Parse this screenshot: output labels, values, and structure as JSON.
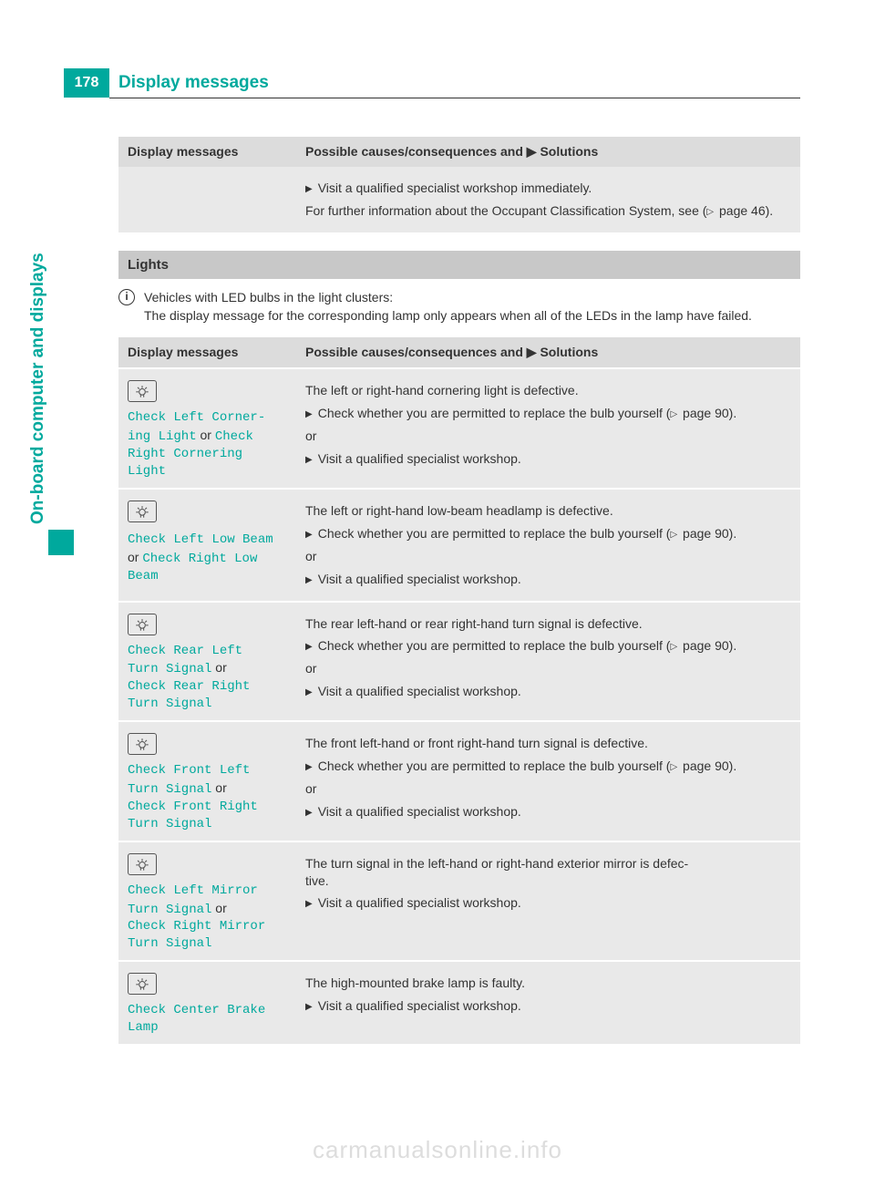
{
  "page_number": "178",
  "header_title": "Display messages",
  "side_tab": "On-board computer and displays",
  "watermark": "carmanualsonline.info",
  "table1": {
    "head_left": "Display messages",
    "head_right_prefix": "Possible causes/consequences and ",
    "head_right_suffix": " Solutions",
    "body_line1": "Visit a qualified specialist workshop immediately.",
    "body_line2_a": "For further information about the Occupant Classification System, see (",
    "body_line2_b": " page 46)."
  },
  "lights_section": {
    "title": "Lights",
    "note": "Vehicles with LED bulbs in the light clusters:",
    "note2": "The display message for the corresponding lamp only appears when all of the LEDs in the lamp have failed."
  },
  "table2": {
    "head_left": "Display messages",
    "head_right_prefix": "Possible causes/consequences and ",
    "head_right_suffix": " Solutions",
    "rows": [
      {
        "msg_a": "Check Left Corner‐\ning Light",
        "or": " or ",
        "msg_b": "Check\nRight Cornering\nLight",
        "desc": "The left or right-hand cornering light is defective.",
        "check_a": "Check whether you are permitted to replace the bulb yourself (",
        "check_b": " page 90).",
        "or_line": "or",
        "visit": "Visit a qualified specialist workshop."
      },
      {
        "msg_a": "Check Left Low Beam",
        "or": "\nor ",
        "msg_b": "Check Right Low\nBeam",
        "desc": "The left or right-hand low-beam headlamp is defective.",
        "check_a": "Check whether you are permitted to replace the bulb yourself (",
        "check_b": " page 90).",
        "or_line": "or",
        "visit": "Visit a qualified specialist workshop."
      },
      {
        "msg_a": "Check Rear Left\nTurn Signal",
        "or": " or\n",
        "msg_b": "Check Rear Right\nTurn Signal",
        "desc": "The rear left-hand or rear right-hand turn signal is defective.",
        "check_a": "Check whether you are permitted to replace the bulb yourself (",
        "check_b": " page 90).",
        "or_line": "or",
        "visit": "Visit a qualified specialist workshop."
      },
      {
        "msg_a": "Check Front Left\nTurn Signal",
        "or": " or\n",
        "msg_b": "Check Front Right\nTurn Signal",
        "desc": "The front left-hand or front right-hand turn signal is defective.",
        "check_a": "Check whether you are permitted to replace the bulb yourself (",
        "check_b": " page 90).",
        "or_line": "or",
        "visit": "Visit a qualified specialist workshop."
      },
      {
        "msg_a": "Check Left Mirror\nTurn Signal",
        "or": " or\n",
        "msg_b": "Check Right Mirror\nTurn Signal",
        "desc": "The turn signal in the left-hand or right-hand exterior mirror is defec‐\ntive.",
        "visit": "Visit a qualified specialist workshop."
      },
      {
        "msg_a": "Check Center Brake\nLamp",
        "desc": "The high-mounted brake lamp is faulty.",
        "visit": "Visit a qualified specialist workshop."
      }
    ]
  }
}
